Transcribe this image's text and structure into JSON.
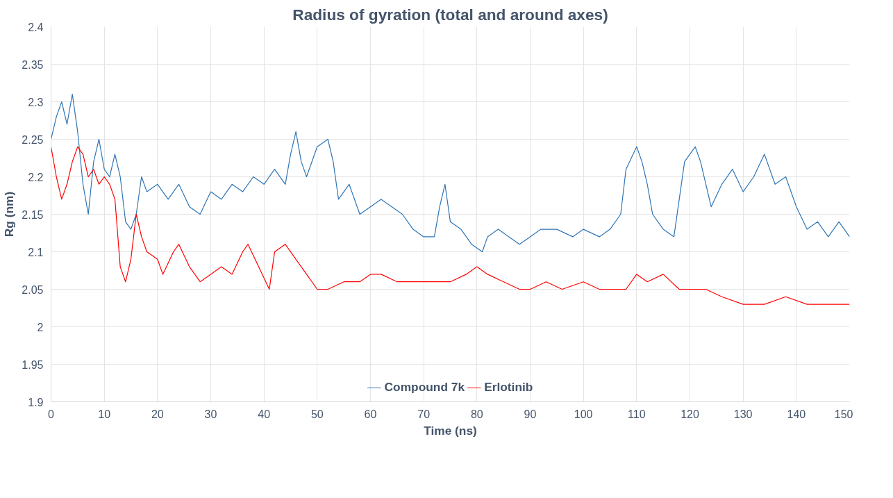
{
  "chart_data": {
    "type": "line",
    "title": "Radius of gyration (total and around axes)",
    "xlabel": "Time (ns)",
    "ylabel": "Rg (nm)",
    "xlim": [
      0,
      150
    ],
    "xticks": [
      0,
      10,
      20,
      30,
      40,
      50,
      60,
      70,
      80,
      90,
      100,
      110,
      120,
      130,
      140,
      150
    ],
    "ylim": [
      1.9,
      2.4
    ],
    "yticks": [
      1.9,
      1.95,
      2,
      2.05,
      2.1,
      2.15,
      2.2,
      2.25,
      2.3,
      2.35,
      2.4
    ],
    "grid": true,
    "legend": "bottom",
    "line_style": "solid",
    "marker": "none",
    "series": [
      {
        "name": "Compound 7k",
        "color": "#2e75b6",
        "x": [
          0,
          1,
          2,
          3,
          4,
          5,
          6,
          7,
          8,
          9,
          10,
          11,
          12,
          13,
          14,
          15,
          16,
          17,
          18,
          20,
          22,
          24,
          26,
          28,
          30,
          32,
          34,
          36,
          38,
          40,
          42,
          44,
          45,
          46,
          47,
          48,
          50,
          52,
          53,
          54,
          56,
          58,
          60,
          62,
          64,
          66,
          68,
          70,
          72,
          73,
          74,
          75,
          77,
          79,
          81,
          82,
          84,
          86,
          88,
          90,
          92,
          95,
          98,
          100,
          103,
          105,
          107,
          108,
          110,
          111,
          112,
          113,
          115,
          117,
          118,
          119,
          121,
          122,
          124,
          126,
          128,
          130,
          132,
          134,
          136,
          138,
          140,
          142,
          144,
          146,
          148,
          150
        ],
        "values": [
          2.25,
          2.28,
          2.3,
          2.27,
          2.31,
          2.26,
          2.19,
          2.15,
          2.22,
          2.25,
          2.21,
          2.2,
          2.23,
          2.2,
          2.14,
          2.13,
          2.15,
          2.2,
          2.18,
          2.19,
          2.17,
          2.19,
          2.16,
          2.15,
          2.18,
          2.17,
          2.19,
          2.18,
          2.2,
          2.19,
          2.21,
          2.19,
          2.23,
          2.26,
          2.22,
          2.2,
          2.24,
          2.25,
          2.22,
          2.17,
          2.19,
          2.15,
          2.16,
          2.17,
          2.16,
          2.15,
          2.13,
          2.12,
          2.12,
          2.16,
          2.19,
          2.14,
          2.13,
          2.11,
          2.1,
          2.12,
          2.13,
          2.12,
          2.11,
          2.12,
          2.13,
          2.13,
          2.12,
          2.13,
          2.12,
          2.13,
          2.15,
          2.21,
          2.24,
          2.22,
          2.19,
          2.15,
          2.13,
          2.12,
          2.17,
          2.22,
          2.24,
          2.22,
          2.16,
          2.19,
          2.21,
          2.18,
          2.2,
          2.23,
          2.19,
          2.2,
          2.16,
          2.13,
          2.14,
          2.12,
          2.14,
          2.12
        ]
      },
      {
        "name": "Erlotinib",
        "color": "#ff0000",
        "x": [
          0,
          1,
          2,
          3,
          4,
          5,
          6,
          7,
          8,
          9,
          10,
          11,
          12,
          13,
          14,
          15,
          16,
          17,
          18,
          20,
          21,
          23,
          24,
          26,
          28,
          30,
          32,
          34,
          36,
          37,
          39,
          41,
          42,
          44,
          46,
          48,
          50,
          52,
          55,
          58,
          60,
          62,
          65,
          68,
          70,
          72,
          75,
          78,
          80,
          82,
          85,
          88,
          90,
          93,
          96,
          100,
          103,
          106,
          108,
          110,
          112,
          115,
          118,
          120,
          123,
          126,
          130,
          134,
          138,
          142,
          146,
          150
        ],
        "values": [
          2.24,
          2.2,
          2.17,
          2.19,
          2.22,
          2.24,
          2.23,
          2.2,
          2.21,
          2.19,
          2.2,
          2.19,
          2.17,
          2.08,
          2.06,
          2.09,
          2.15,
          2.12,
          2.1,
          2.09,
          2.07,
          2.1,
          2.11,
          2.08,
          2.06,
          2.07,
          2.08,
          2.07,
          2.1,
          2.11,
          2.08,
          2.05,
          2.1,
          2.11,
          2.09,
          2.07,
          2.05,
          2.05,
          2.06,
          2.06,
          2.07,
          2.07,
          2.06,
          2.06,
          2.06,
          2.06,
          2.06,
          2.07,
          2.08,
          2.07,
          2.06,
          2.05,
          2.05,
          2.06,
          2.05,
          2.06,
          2.05,
          2.05,
          2.05,
          2.07,
          2.06,
          2.07,
          2.05,
          2.05,
          2.05,
          2.04,
          2.03,
          2.03,
          2.04,
          2.03,
          2.03,
          2.03
        ]
      }
    ]
  }
}
